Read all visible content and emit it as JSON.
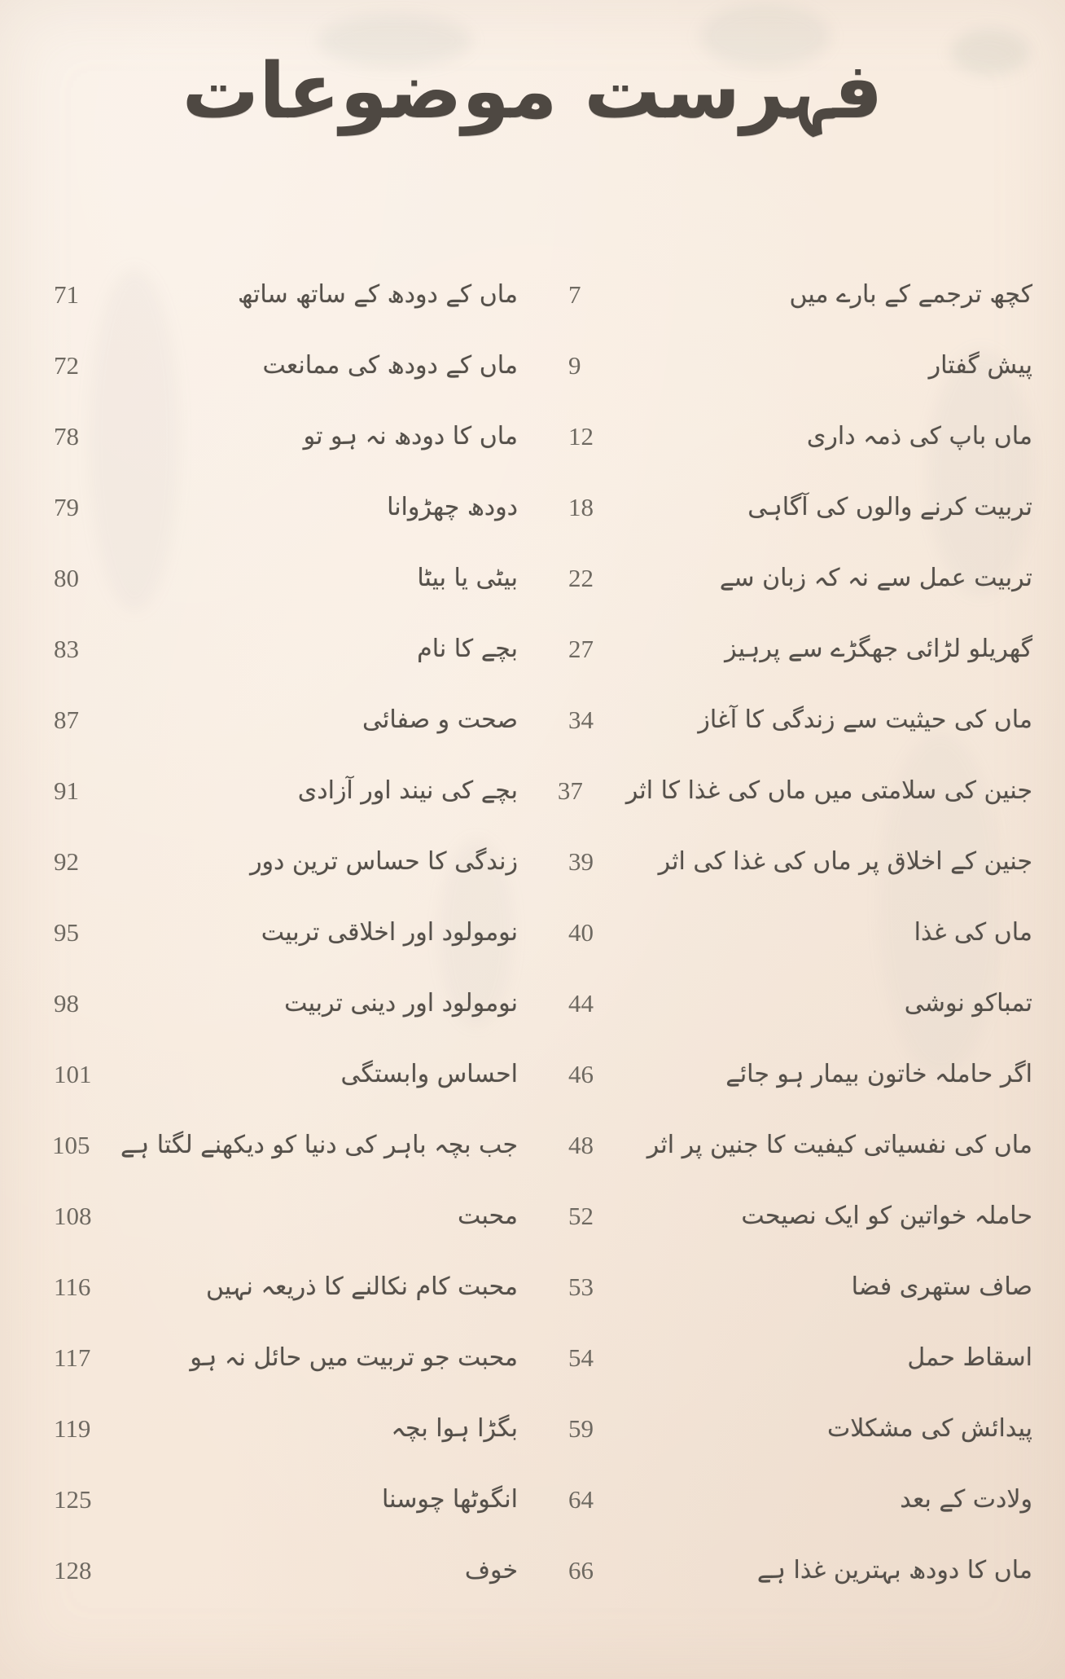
{
  "page": {
    "title": "فہرست موضوعات"
  },
  "colors": {
    "paper": "#f7eadd",
    "ink": "#55504a",
    "page_number": "#6e6961"
  },
  "toc": {
    "part1": {
      "entries": [
        {
          "title": "کچھ ترجمے کے بارے میں",
          "page": "7"
        },
        {
          "title": "پیش گفتار",
          "page": "9"
        },
        {
          "title": "ماں باپ کی ذمہ داری",
          "page": "12"
        },
        {
          "title": "تربیت کرنے والوں کی آگاہی",
          "page": "18"
        },
        {
          "title": "تربیت عمل سے نہ کہ زبان سے",
          "page": "22"
        },
        {
          "title": "گھریلو لڑائی جھگڑے سے پرہیز",
          "page": "27"
        },
        {
          "title": "ماں کی حیثیت سے زندگی کا آغاز",
          "page": "34"
        },
        {
          "title": "جنین کی سلامتی میں ماں کی غذا کا اثر",
          "page": "37"
        },
        {
          "title": "جنین کے اخلاق پر ماں کی غذا کی اثر",
          "page": "39"
        },
        {
          "title": "ماں کی غذا",
          "page": "40"
        },
        {
          "title": "تمباکو نوشی",
          "page": "44"
        },
        {
          "title": "اگر حاملہ خاتون بیمار ہو جائے",
          "page": "46"
        },
        {
          "title": "ماں کی نفسیاتی کیفیت کا جنین پر اثر",
          "page": "48"
        },
        {
          "title": "حاملہ خواتین کو ایک نصیحت",
          "page": "52"
        },
        {
          "title": "صاف ستھری فضا",
          "page": "53"
        },
        {
          "title": "اسقاط حمل",
          "page": "54"
        },
        {
          "title": "پیدائش کی مشکلات",
          "page": "59"
        },
        {
          "title": "ولادت کے بعد",
          "page": "64"
        },
        {
          "title": "ماں کا دودھ بہترین غذا ہے",
          "page": "66"
        }
      ]
    },
    "part2": {
      "entries": [
        {
          "title": "ماں کے دودھ کے ساتھ ساتھ",
          "page": "71"
        },
        {
          "title": "ماں کے دودھ کی ممانعت",
          "page": "72"
        },
        {
          "title": "ماں کا دودھ نہ ہو تو",
          "page": "78"
        },
        {
          "title": "دودھ چھڑوانا",
          "page": "79"
        },
        {
          "title": "بیٹی یا بیٹا",
          "page": "80"
        },
        {
          "title": "بچے کا نام",
          "page": "83"
        },
        {
          "title": "صحت و صفائی",
          "page": "87"
        },
        {
          "title": "بچے کی نیند اور آزادی",
          "page": "91"
        },
        {
          "title": "زندگی کا حساس ترین دور",
          "page": "92"
        },
        {
          "title": "نومولود اور اخلاقی تربیت",
          "page": "95"
        },
        {
          "title": "نومولود اور دینی تربیت",
          "page": "98"
        },
        {
          "title": "احساس وابستگی",
          "page": "101"
        },
        {
          "title": "جب بچہ باہر کی دنیا کو دیکھنے لگتا ہے",
          "page": "105"
        },
        {
          "title": "محبت",
          "page": "108"
        },
        {
          "title": "محبت کام نکالنے کا ذریعہ نہیں",
          "page": "116"
        },
        {
          "title": "محبت جو تربیت میں حائل نہ ہو",
          "page": "117"
        },
        {
          "title": "بگڑا ہوا بچہ",
          "page": "119"
        },
        {
          "title": "انگوٹھا چوسنا",
          "page": "125"
        },
        {
          "title": "خوف",
          "page": "128"
        }
      ]
    }
  }
}
